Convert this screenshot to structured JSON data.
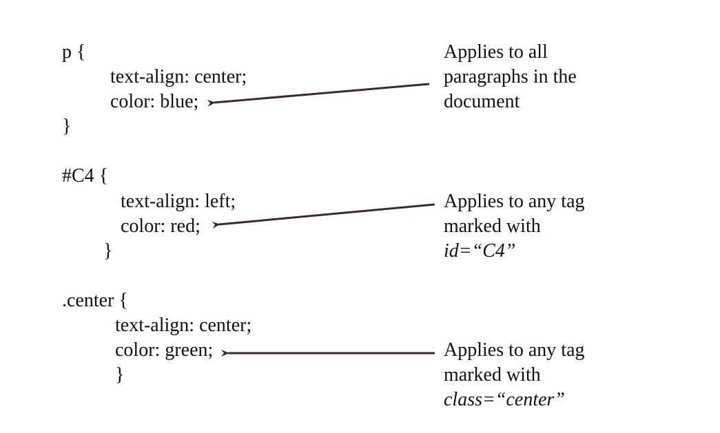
{
  "rules": [
    {
      "selector_line": "p {",
      "declarations": [
        "text-align: center;",
        "color: blue;"
      ],
      "close": "}",
      "note": [
        "Applies to all",
        "paragraphs in the",
        "document"
      ]
    },
    {
      "selector_line": "#C4 {",
      "declarations": [
        "text-align: left;",
        "color: red;"
      ],
      "close": "}",
      "note": [
        "Applies to any tag",
        "marked with",
        "id=“C4”"
      ]
    },
    {
      "selector_line": ".center {",
      "declarations": [
        "text-align: center;",
        "color: green;"
      ],
      "close": "}",
      "note": [
        "Applies to any tag",
        "marked with",
        "class=“center”"
      ]
    }
  ],
  "colors": {
    "text": "#111111",
    "arrow": "#3a2a2a"
  }
}
